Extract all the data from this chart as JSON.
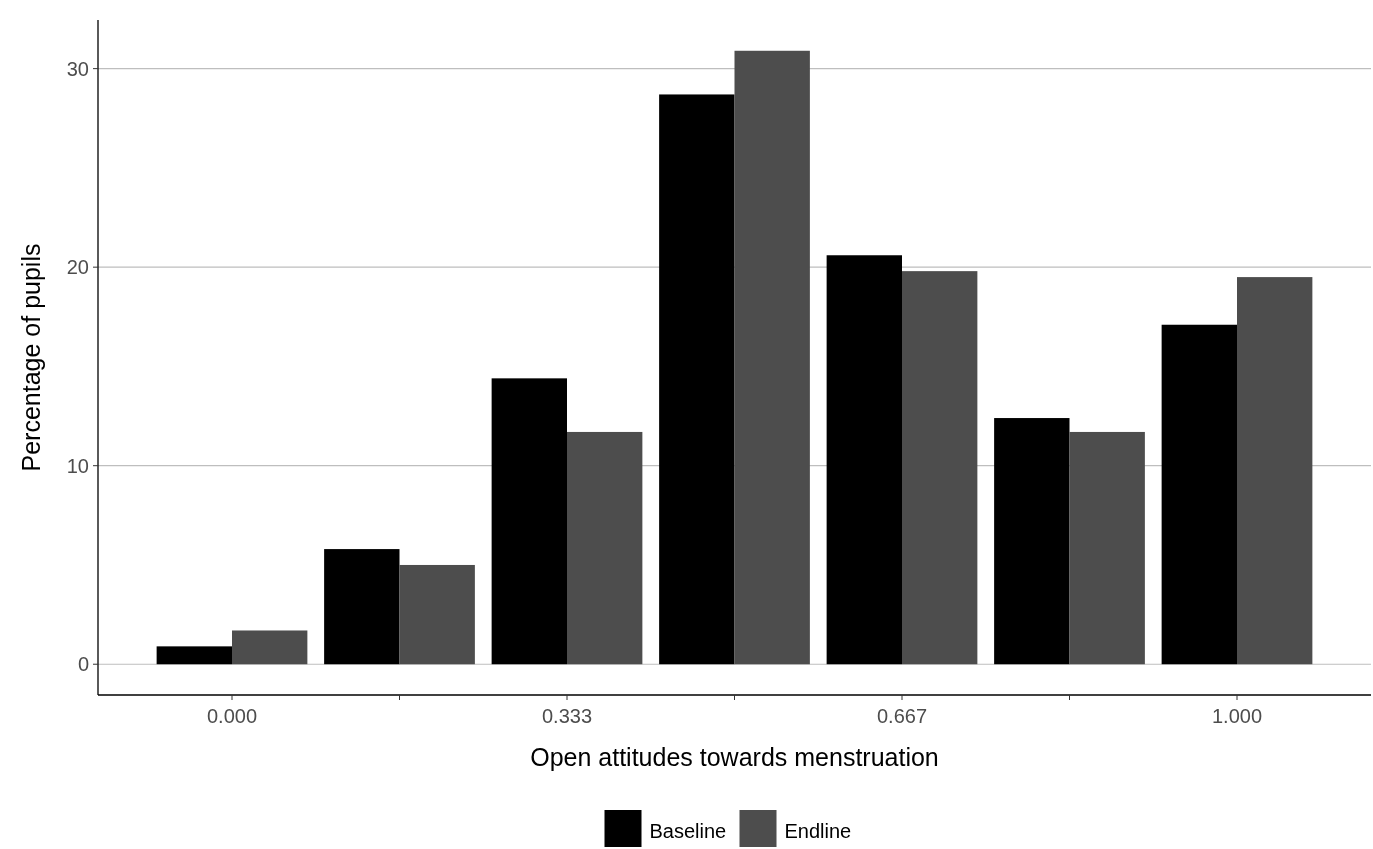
{
  "chart_data": {
    "type": "bar",
    "xlabel": "Open attitudes towards menstruation",
    "ylabel": "Percentage of pupils",
    "categories": [
      "0.000",
      null,
      "0.333",
      null,
      "0.667",
      null,
      "1.000"
    ],
    "series": [
      {
        "name": "Baseline",
        "color": "#000000",
        "values": [
          0.9,
          5.8,
          14.4,
          28.7,
          20.6,
          12.4,
          17.1
        ]
      },
      {
        "name": "Endline",
        "color": "#4d4d4d",
        "values": [
          1.7,
          5.0,
          11.7,
          30.9,
          19.8,
          11.7,
          19.5
        ]
      }
    ],
    "ylim": [
      -1.55,
      32.45
    ],
    "yticks": [
      0,
      10,
      20,
      30
    ],
    "grid": "y",
    "legend": "bottom"
  }
}
